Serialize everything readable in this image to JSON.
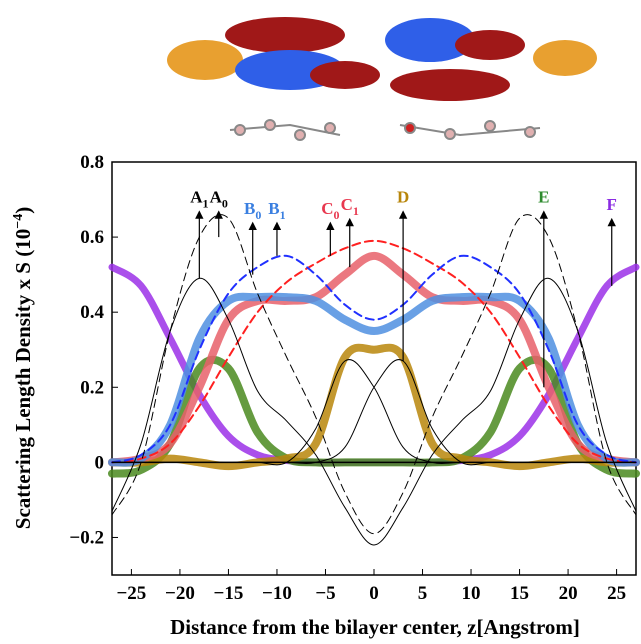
{
  "chart_data": {
    "type": "line",
    "xlabel": "Distance from the bilayer center, z[Angstrom]",
    "ylabel": "Scattering Length Density x S (10",
    "ylabel_sup": "−4",
    "ylabel_end": ")",
    "xlim": [
      -27,
      27
    ],
    "ylim": [
      -0.3,
      0.8
    ],
    "xticks": [
      {
        "value": -25,
        "label": "−25"
      },
      {
        "value": -20,
        "label": "−20"
      },
      {
        "value": -15,
        "label": "−15"
      },
      {
        "value": -10,
        "label": "−10"
      },
      {
        "value": -5,
        "label": "−5"
      },
      0,
      5,
      10,
      15,
      20,
      25
    ],
    "yticks": [
      {
        "value": -0.2,
        "label": "−0.2"
      },
      0,
      0.2,
      0.4,
      0.6,
      0.8
    ],
    "x": [
      -27,
      -24,
      -21,
      -18,
      -15,
      -12,
      -9,
      -6,
      -3,
      0,
      3,
      6,
      9,
      12,
      15,
      18,
      21,
      24,
      27
    ],
    "series": [
      {
        "color": "#9b30e8",
        "width": 7,
        "values": [
          0.52,
          0.47,
          0.33,
          0.18,
          0.07,
          0.02,
          0.005,
          0,
          0,
          0,
          0,
          0,
          0.005,
          0.02,
          0.07,
          0.18,
          0.33,
          0.47,
          0.52
        ]
      },
      {
        "color": "#4a8a1e",
        "width": 8,
        "values": [
          -0.03,
          -0.02,
          0.05,
          0.25,
          0.25,
          0.08,
          0.01,
          0,
          0,
          0,
          0,
          0,
          0.01,
          0.08,
          0.25,
          0.25,
          0.05,
          -0.02,
          -0.03
        ]
      },
      {
        "color": "#b8860b",
        "width": 8,
        "values": [
          0,
          0,
          0.01,
          0,
          -0.01,
          0,
          0.01,
          0.05,
          0.28,
          0.3,
          0.28,
          0.05,
          0.01,
          0,
          -0.01,
          0,
          0.01,
          0,
          0
        ]
      },
      {
        "color": "#e8606a",
        "width": 8,
        "values": [
          0,
          0.01,
          0.05,
          0.2,
          0.38,
          0.43,
          0.43,
          0.44,
          0.5,
          0.55,
          0.5,
          0.44,
          0.43,
          0.43,
          0.38,
          0.2,
          0.05,
          0.01,
          0
        ]
      },
      {
        "color": "#4f8fe0",
        "width": 8,
        "values": [
          0,
          0.01,
          0.1,
          0.33,
          0.43,
          0.44,
          0.44,
          0.43,
          0.38,
          0.35,
          0.38,
          0.43,
          0.44,
          0.44,
          0.43,
          0.33,
          0.1,
          0.01,
          0
        ]
      },
      {
        "color": "#ff2020",
        "width": 2,
        "dash": true,
        "values": [
          0,
          0.01,
          0.05,
          0.15,
          0.28,
          0.4,
          0.48,
          0.53,
          0.57,
          0.59,
          0.57,
          0.53,
          0.48,
          0.4,
          0.28,
          0.15,
          0.05,
          0.01,
          0
        ]
      },
      {
        "color": "#2030ff",
        "width": 2,
        "dash": true,
        "values": [
          0,
          0.02,
          0.1,
          0.3,
          0.45,
          0.52,
          0.55,
          0.5,
          0.42,
          0.38,
          0.42,
          0.5,
          0.55,
          0.52,
          0.45,
          0.3,
          0.1,
          0.02,
          0
        ]
      },
      {
        "color": "#000000",
        "width": 1,
        "dash": true,
        "values": [
          -0.14,
          0,
          0.35,
          0.6,
          0.65,
          0.45,
          0.28,
          0.12,
          -0.08,
          -0.19,
          -0.08,
          0.12,
          0.28,
          0.45,
          0.65,
          0.6,
          0.35,
          0,
          -0.14
        ]
      },
      {
        "color": "#000000",
        "width": 1,
        "values": [
          -0.13,
          0.05,
          0.35,
          0.49,
          0.38,
          0.19,
          0.11,
          0.02,
          -0.12,
          -0.22,
          -0.12,
          0.02,
          0.11,
          0.19,
          0.38,
          0.49,
          0.35,
          0.05,
          -0.13
        ]
      },
      {
        "color": "#000000",
        "width": 1,
        "values": [
          0,
          0,
          0,
          0,
          0,
          0,
          0,
          0.09,
          0.27,
          0.2,
          0.04,
          0,
          0,
          0,
          0,
          0,
          0,
          0,
          0
        ]
      },
      {
        "color": "#000000",
        "width": 1,
        "values": [
          0,
          0,
          0,
          0,
          0,
          0,
          0,
          0,
          0.04,
          0.2,
          0.27,
          0.09,
          0,
          0,
          0,
          0,
          0,
          0,
          0
        ]
      }
    ],
    "annotations": [
      {
        "text": "A",
        "sub": "1",
        "color": "#000000",
        "x": -18,
        "base": 0.49,
        "tip": 0.66
      },
      {
        "text": "A",
        "sub": "0",
        "color": "#000000",
        "x": -16,
        "base": 0.6,
        "tip": 0.66
      },
      {
        "text": "B",
        "sub": "0",
        "color": "#3a7fe0",
        "x": -12.5,
        "base": 0.5,
        "tip": 0.63
      },
      {
        "text": "B",
        "sub": "1",
        "color": "#3a7fe0",
        "x": -10,
        "base": 0.55,
        "tip": 0.63
      },
      {
        "text": "C",
        "sub": "0",
        "color": "#e8384f",
        "x": -4.5,
        "base": 0.55,
        "tip": 0.63
      },
      {
        "text": "C",
        "sub": "1",
        "color": "#e8384f",
        "x": -2.5,
        "base": 0.52,
        "tip": 0.64
      },
      {
        "text": "D",
        "color": "#b8860b",
        "x": 3,
        "base": 0.27,
        "tip": 0.66
      },
      {
        "text": "E",
        "color": "#2e8b2e",
        "x": 17.5,
        "base": 0.2,
        "tip": 0.66
      },
      {
        "text": "F",
        "color": "#8a2be2",
        "x": 24.5,
        "base": 0.47,
        "tip": 0.64
      }
    ]
  }
}
